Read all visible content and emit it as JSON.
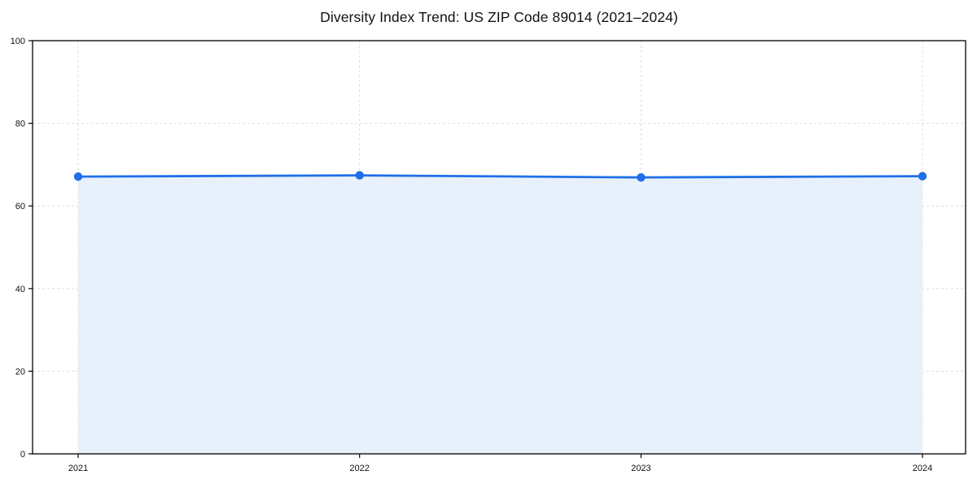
{
  "chart_data": {
    "type": "area",
    "title": "Diversity Index Trend: US ZIP Code 89014 (2021–2024)",
    "x": [
      "2021",
      "2022",
      "2023",
      "2024"
    ],
    "series": [
      {
        "name": "Diversity Index",
        "values": [
          67.1,
          67.4,
          66.9,
          67.2
        ]
      }
    ],
    "xlabel": "",
    "ylabel": "",
    "ylim": [
      0,
      100
    ],
    "yticks": [
      0,
      20,
      40,
      60,
      80,
      100
    ],
    "grid": true,
    "grid_style": "dashed",
    "legend": "none",
    "colors": {
      "line": "#1E6FE8",
      "marker": "#1E6FE8",
      "area_fill": "#E8F0FB",
      "grid": "#DDDDDD",
      "spine": "#000000",
      "tick_label": "#111111",
      "title": "#111111",
      "background": "#FFFFFF"
    }
  }
}
